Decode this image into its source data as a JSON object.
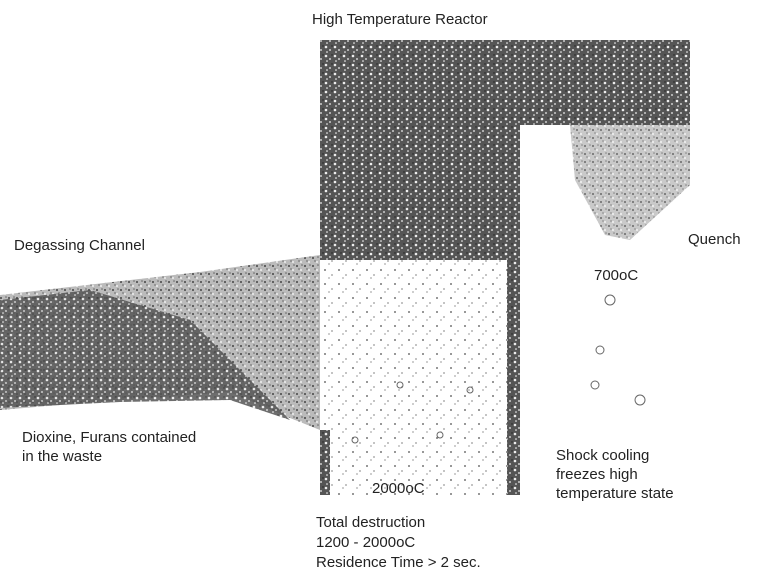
{
  "title": "High Temperature Reactor",
  "degassing": "Degassing Channel",
  "quench": "Quench",
  "quench_temp": "700oC",
  "reactor_temp": "2000oC",
  "dioxine": [
    "Dioxine, Furans contained",
    "in the waste"
  ],
  "shock": [
    "Shock cooling",
    "freezes high",
    "temperature state"
  ],
  "destruction": [
    "Total destruction",
    "1200 - 2000oC",
    "Residence Time > 2 sec."
  ]
}
